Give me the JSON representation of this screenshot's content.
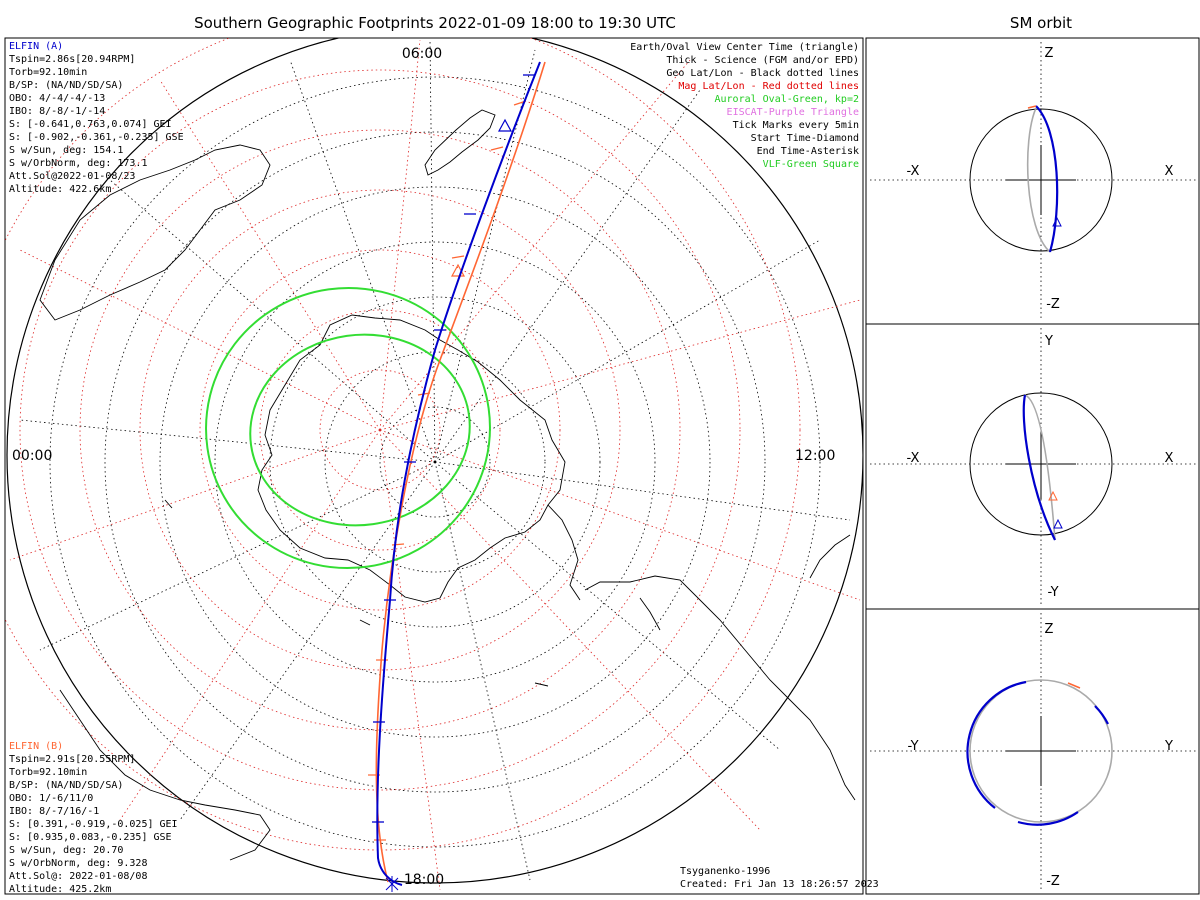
{
  "header": {
    "main_title": "Southern Geographic Footprints 2022-01-09 18:00 to 19:30 UTC",
    "orbit_title": "SM orbit"
  },
  "clock_labels": {
    "top": "06:00",
    "left": "00:00",
    "right": "12:00",
    "bottom": "18:00"
  },
  "legend": [
    {
      "text": "Earth/Oval View Center Time (triangle)",
      "color": "#000000"
    },
    {
      "text": "Thick - Science (FGM and/or EPD)",
      "color": "#000000"
    },
    {
      "text": "Geo Lat/Lon - Black dotted lines",
      "color": "#000000"
    },
    {
      "text": "Mag Lat/Lon - Red dotted lines",
      "color": "#e00000"
    },
    {
      "text": "Auroral Oval-Green, kp=2",
      "color": "#22cc22"
    },
    {
      "text": "EISCAT-Purple Triangle",
      "color": "#e070e0"
    },
    {
      "text": "Tick Marks every 5min",
      "color": "#000000"
    },
    {
      "text": "Start Time-Diamond",
      "color": "#000000"
    },
    {
      "text": "End Time-Asterisk",
      "color": "#000000"
    },
    {
      "text": "VLF-Green Square",
      "color": "#22cc22"
    }
  ],
  "elfin_a": {
    "name": "ELFIN (A)",
    "color": "#0000cc",
    "lines": [
      "Tspin=2.86s[20.94RPM]",
      "Torb=92.10min",
      "B/SP: (NA/ND/SD/SA)",
      "OBO: 4/-4/-4/-13",
      "IBO: 8/-8/-1/-14",
      "S: [-0.641,0.763,0.074] GEI",
      "S: [-0.902,-0.361,-0.235] GSE",
      "S w/Sun, deg: 154.1",
      "S w/OrbNorm, deg: 173.1",
      "Att.Sol@2022-01-08/23",
      "Altitude: 422.6km"
    ]
  },
  "elfin_b": {
    "name": "ELFIN (B)",
    "color": "#ff6633",
    "lines": [
      "Tspin=2.91s[20.55RPM]",
      "Torb=92.10min",
      "B/SP: (NA/ND/SD/SA)",
      "OBO: 1/-6/11/0",
      "IBO: 8/-7/16/-1",
      "S: [0.391,-0.919,-0.025] GEI",
      "S: [0.935,0.083,-0.235] GSE",
      "S w/Sun, deg: 20.70",
      "S w/OrbNorm, deg: 9.328",
      "Att.Sol@: 2022-01-08/08",
      "Altitude: 425.2km"
    ]
  },
  "credits": {
    "model": "Tsyganenko-1996",
    "created": "Created: Fri Jan 13 18:26:57 2023"
  },
  "orbit_panels": [
    {
      "top": "Z",
      "bottom": "-Z",
      "left": "-X",
      "right": "X"
    },
    {
      "top": "Y",
      "bottom": "-Y",
      "left": "-X",
      "right": "X"
    },
    {
      "top": "Z",
      "bottom": "-Z",
      "left": "-Y",
      "right": "Y"
    }
  ],
  "colors": {
    "elfin_a": "#0000cc",
    "elfin_b": "#ff6633",
    "auroral_oval": "#33dd33",
    "geo_grid": "#000000",
    "mag_grid": "#dd2222",
    "orbit_gray": "#aaaaaa"
  }
}
